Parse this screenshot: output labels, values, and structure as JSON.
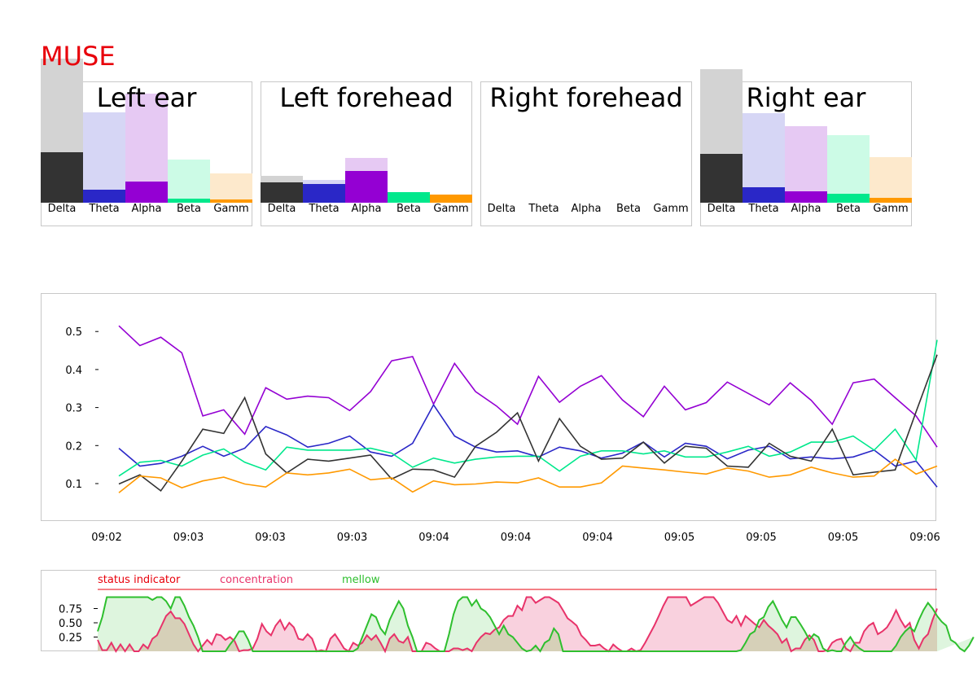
{
  "app": {
    "title": "MUSE"
  },
  "bands": [
    "Delta",
    "Theta",
    "Alpha",
    "Beta",
    "Gamm"
  ],
  "colors": {
    "brand": "#e8000b",
    "delta": "#333333",
    "delta_light": "#d3d3d3",
    "theta": "#2a27c7",
    "theta_light": "#d6d6f5",
    "alpha": "#9400d3",
    "alpha_light": "#e6c9f3",
    "beta": "#00e88c",
    "beta_light": "#ccfbe6",
    "gamma": "#ff9900",
    "gamma_light": "#fde9cc",
    "concentration": "#e8336a",
    "concentration_fill": "#f9d1de",
    "mellow": "#2ebf2e",
    "mellow_fill": "#d3f2d3",
    "overlap_fill": "#d6d0b8"
  },
  "chart_data": [
    {
      "type": "bar",
      "title": "Left ear",
      "categories": [
        "Delta",
        "Theta",
        "Alpha",
        "Beta",
        "Gamm"
      ],
      "series": [
        {
          "values": [
            0.62,
            0.16,
            0.26,
            0.05,
            0.04
          ]
        },
        {
          "values": [
            1.77,
            1.11,
            1.34,
            0.53,
            0.36
          ]
        }
      ]
    },
    {
      "type": "bar",
      "title": "Left forehead",
      "categories": [
        "Delta",
        "Theta",
        "Alpha",
        "Beta",
        "Gamm"
      ],
      "series": [
        {
          "values": [
            0.25,
            0.23,
            0.39,
            0.13,
            0.1
          ]
        },
        {
          "values": [
            0.33,
            0.28,
            0.55,
            0.13,
            0.1
          ]
        }
      ]
    },
    {
      "type": "bar",
      "title": "Right forehead",
      "categories": [
        "Delta",
        "Theta",
        "Alpha",
        "Beta",
        "Gamm"
      ],
      "series": [
        {
          "values": [
            0,
            0,
            0,
            0,
            0
          ]
        },
        {
          "values": [
            0,
            0,
            0,
            0,
            0
          ]
        }
      ]
    },
    {
      "type": "bar",
      "title": "Right ear",
      "categories": [
        "Delta",
        "Theta",
        "Alpha",
        "Beta",
        "Gamm"
      ],
      "series": [
        {
          "values": [
            0.6,
            0.19,
            0.14,
            0.11,
            0.06
          ]
        },
        {
          "values": [
            1.64,
            1.1,
            0.94,
            0.83,
            0.56
          ]
        }
      ]
    },
    {
      "type": "line",
      "x_tick_labels": [
        "09:02",
        "09:03",
        "09:03",
        "09:03",
        "09:04",
        "09:04",
        "09:04",
        "09:05",
        "09:05",
        "09:05",
        "09:06"
      ],
      "ylim": [
        0.05,
        0.55
      ],
      "yticks": [
        "0.1",
        "0.2",
        "0.3",
        "0.4",
        "0.5"
      ],
      "grid": false,
      "series": [
        {
          "band": "alpha",
          "values": [
            0.515,
            0.463,
            0.485,
            0.444,
            0.278,
            0.294,
            0.23,
            0.352,
            0.322,
            0.33,
            0.326,
            0.292,
            0.342,
            0.423,
            0.434,
            0.309,
            0.416,
            0.342,
            0.304,
            0.256,
            0.382,
            0.314,
            0.356,
            0.384,
            0.32,
            0.276,
            0.356,
            0.294,
            0.313,
            0.367,
            0.337,
            0.307,
            0.365,
            0.319,
            0.256,
            0.365,
            0.375,
            0.326,
            0.278,
            0.196
          ]
        },
        {
          "band": "theta",
          "values": [
            0.193,
            0.146,
            0.153,
            0.172,
            0.198,
            0.172,
            0.193,
            0.25,
            0.228,
            0.196,
            0.206,
            0.225,
            0.183,
            0.172,
            0.206,
            0.307,
            0.225,
            0.196,
            0.183,
            0.186,
            0.17,
            0.196,
            0.186,
            0.167,
            0.18,
            0.209,
            0.17,
            0.206,
            0.198,
            0.165,
            0.188,
            0.198,
            0.165,
            0.17,
            0.165,
            0.17,
            0.188,
            0.146,
            0.159,
            0.091
          ]
        },
        {
          "band": "beta",
          "values": [
            0.12,
            0.156,
            0.161,
            0.146,
            0.175,
            0.191,
            0.156,
            0.136,
            0.196,
            0.188,
            0.188,
            0.188,
            0.193,
            0.18,
            0.143,
            0.167,
            0.154,
            0.164,
            0.17,
            0.172,
            0.172,
            0.133,
            0.172,
            0.186,
            0.186,
            0.178,
            0.186,
            0.17,
            0.17,
            0.183,
            0.198,
            0.172,
            0.183,
            0.209,
            0.209,
            0.225,
            0.188,
            0.243,
            0.162,
            0.478
          ]
        },
        {
          "band": "delta",
          "values": [
            0.099,
            0.123,
            0.081,
            0.159,
            0.243,
            0.232,
            0.326,
            0.178,
            0.128,
            0.164,
            0.159,
            0.167,
            0.175,
            0.112,
            0.138,
            0.136,
            0.117,
            0.198,
            0.235,
            0.286,
            0.159,
            0.271,
            0.198,
            0.164,
            0.167,
            0.209,
            0.154,
            0.198,
            0.193,
            0.146,
            0.143,
            0.206,
            0.172,
            0.159,
            0.243,
            0.123,
            0.13,
            0.136,
            0.289,
            0.439
          ]
        },
        {
          "band": "gamma",
          "values": [
            0.076,
            0.12,
            0.115,
            0.089,
            0.107,
            0.117,
            0.099,
            0.091,
            0.128,
            0.123,
            0.128,
            0.138,
            0.11,
            0.115,
            0.078,
            0.107,
            0.097,
            0.099,
            0.104,
            0.102,
            0.115,
            0.091,
            0.091,
            0.102,
            0.146,
            0.141,
            0.136,
            0.13,
            0.125,
            0.141,
            0.133,
            0.117,
            0.123,
            0.143,
            0.128,
            0.117,
            0.12,
            0.164,
            0.125,
            0.146
          ]
        }
      ]
    },
    {
      "type": "area",
      "legend": [
        "status indicator",
        "concentration",
        "mellow"
      ],
      "yticks": [
        "0.25",
        "0.50",
        "0.75"
      ],
      "ylim": [
        0,
        1
      ],
      "series": [
        {
          "name": "concentration",
          "values": [
            0.2,
            0.02,
            0.02,
            0.15,
            0.0,
            0.12,
            0.0,
            0.12,
            0.0,
            0.0,
            0.12,
            0.05,
            0.22,
            0.28,
            0.45,
            0.62,
            0.7,
            0.58,
            0.58,
            0.48,
            0.3,
            0.12,
            0.0,
            0.1,
            0.2,
            0.12,
            0.3,
            0.28,
            0.2,
            0.25,
            0.18,
            0.0,
            0.02,
            0.02,
            0.05,
            0.22,
            0.48,
            0.35,
            0.28,
            0.45,
            0.55,
            0.38,
            0.5,
            0.42,
            0.22,
            0.2,
            0.3,
            0.22,
            0.0,
            0.02,
            0.0,
            0.22,
            0.3,
            0.18,
            0.05,
            0.0,
            0.15,
            0.1,
            0.15,
            0.28,
            0.2,
            0.28,
            0.15,
            0.0,
            0.22,
            0.3,
            0.18,
            0.15,
            0.25,
            0.0,
            0.0,
            0.0,
            0.15,
            0.12,
            0.05,
            0.0,
            0.0,
            0.0,
            0.05,
            0.05,
            0.02,
            0.05,
            0.0,
            0.15,
            0.25,
            0.32,
            0.3,
            0.38,
            0.42,
            0.55,
            0.62,
            0.62,
            0.8,
            0.72,
            0.95,
            0.95,
            0.85,
            0.9,
            0.95,
            0.95,
            0.9,
            0.85,
            0.72,
            0.58,
            0.52,
            0.45,
            0.28,
            0.2,
            0.1,
            0.1,
            0.12,
            0.05,
            0.0,
            0.12,
            0.05,
            0.0,
            0.0,
            0.05,
            0.0,
            0.02,
            0.15,
            0.3,
            0.45,
            0.62,
            0.8,
            0.95,
            0.95,
            0.95,
            0.95,
            0.95,
            0.8,
            0.85,
            0.9,
            0.95,
            0.95,
            0.95,
            0.85,
            0.7,
            0.55,
            0.5,
            0.62,
            0.45,
            0.62,
            0.55,
            0.48,
            0.42,
            0.55,
            0.45,
            0.38,
            0.3,
            0.15,
            0.22,
            0.0,
            0.05,
            0.05,
            0.2,
            0.28,
            0.2,
            0.0,
            0.0,
            0.02,
            0.15,
            0.2,
            0.22,
            0.05,
            0.0,
            0.15,
            0.15,
            0.35,
            0.45,
            0.5,
            0.3,
            0.35,
            0.42,
            0.55,
            0.72,
            0.55,
            0.42,
            0.5,
            0.2,
            0.05,
            0.22,
            0.3,
            0.55,
            0.75
          ]
        },
        {
          "name": "mellow",
          "values": [
            0.35,
            0.6,
            0.95,
            0.95,
            0.95,
            0.95,
            0.95,
            0.95,
            0.95,
            0.95,
            0.95,
            0.95,
            0.9,
            0.95,
            0.95,
            0.88,
            0.75,
            0.95,
            0.95,
            0.8,
            0.6,
            0.45,
            0.25,
            0.0,
            0.0,
            0.0,
            0.0,
            0.0,
            0.0,
            0.12,
            0.22,
            0.35,
            0.35,
            0.2,
            0.0,
            0.0,
            0.0,
            0.0,
            0.0,
            0.0,
            0.0,
            0.0,
            0.0,
            0.0,
            0.0,
            0.0,
            0.0,
            0.0,
            0.0,
            0.0,
            0.0,
            0.0,
            0.0,
            0.0,
            0.0,
            0.0,
            0.0,
            0.05,
            0.25,
            0.45,
            0.65,
            0.6,
            0.4,
            0.3,
            0.55,
            0.72,
            0.88,
            0.75,
            0.45,
            0.25,
            0.0,
            0.0,
            0.0,
            0.0,
            0.0,
            0.0,
            0.0,
            0.3,
            0.65,
            0.88,
            0.95,
            0.95,
            0.8,
            0.9,
            0.75,
            0.7,
            0.6,
            0.45,
            0.3,
            0.45,
            0.3,
            0.25,
            0.15,
            0.05,
            0.0,
            0.02,
            0.1,
            0.0,
            0.15,
            0.2,
            0.4,
            0.3,
            0.0,
            0.0,
            0.0,
            0.0,
            0.0,
            0.0,
            0.0,
            0.0,
            0.0,
            0.0,
            0.0,
            0.0,
            0.0,
            0.0,
            0.0,
            0.0,
            0.0,
            0.0,
            0.0,
            0.0,
            0.0,
            0.0,
            0.0,
            0.0,
            0.0,
            0.0,
            0.0,
            0.0,
            0.0,
            0.0,
            0.0,
            0.0,
            0.0,
            0.0,
            0.0,
            0.0,
            0.0,
            0.0,
            0.0,
            0.02,
            0.15,
            0.3,
            0.35,
            0.55,
            0.6,
            0.78,
            0.88,
            0.72,
            0.55,
            0.42,
            0.6,
            0.6,
            0.48,
            0.35,
            0.2,
            0.3,
            0.25,
            0.05,
            0.0,
            0.02,
            0.0,
            0.0,
            0.15,
            0.25,
            0.12,
            0.05,
            0.0,
            0.0,
            0.0,
            0.0,
            0.0,
            0.0,
            0.0,
            0.1,
            0.25,
            0.35,
            0.42,
            0.35,
            0.55,
            0.72,
            0.85,
            0.75,
            0.62,
            0.52,
            0.45,
            0.2,
            0.15,
            0.05,
            0.0,
            0.1,
            0.25
          ]
        }
      ]
    }
  ]
}
